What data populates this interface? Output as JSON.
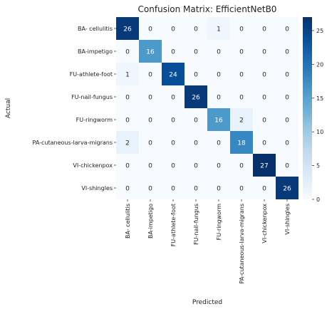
{
  "chart_data": {
    "type": "heatmap",
    "title": "Confusion Matrix: EfficientNetB0",
    "xlabel": "Predicted",
    "ylabel": "Actual",
    "row_labels": [
      "BA- cellulitis",
      "BA-impetigo",
      "FU-athlete-foot",
      "FU-nail-fungus",
      "FU-ringworm",
      "PA-cutaneous-larva-migrans",
      "VI-chickenpox",
      "VI-shingles"
    ],
    "col_labels": [
      "BA- cellulitis",
      "BA-impetigo",
      "FU-athlete-foot",
      "FU-nail-fungus",
      "FU-ringworm",
      "PA-cutaneous-larva-migrans",
      "VI-chickenpox",
      "VI-shingles"
    ],
    "matrix": [
      [
        26,
        0,
        0,
        0,
        1,
        0,
        0,
        0
      ],
      [
        0,
        16,
        0,
        0,
        0,
        0,
        0,
        0
      ],
      [
        1,
        0,
        24,
        0,
        0,
        0,
        0,
        0
      ],
      [
        0,
        0,
        0,
        26,
        0,
        0,
        0,
        0
      ],
      [
        0,
        0,
        0,
        0,
        16,
        2,
        0,
        0
      ],
      [
        2,
        0,
        0,
        0,
        0,
        18,
        0,
        0
      ],
      [
        0,
        0,
        0,
        0,
        0,
        0,
        27,
        0
      ],
      [
        0,
        0,
        0,
        0,
        0,
        0,
        0,
        26
      ]
    ],
    "colorbar": {
      "min": 0,
      "max": 27,
      "ticks": [
        0,
        5,
        10,
        15,
        20,
        25
      ],
      "colormap": "Blues",
      "low_color": "#f7fbff",
      "high_color": "#08306b"
    }
  }
}
